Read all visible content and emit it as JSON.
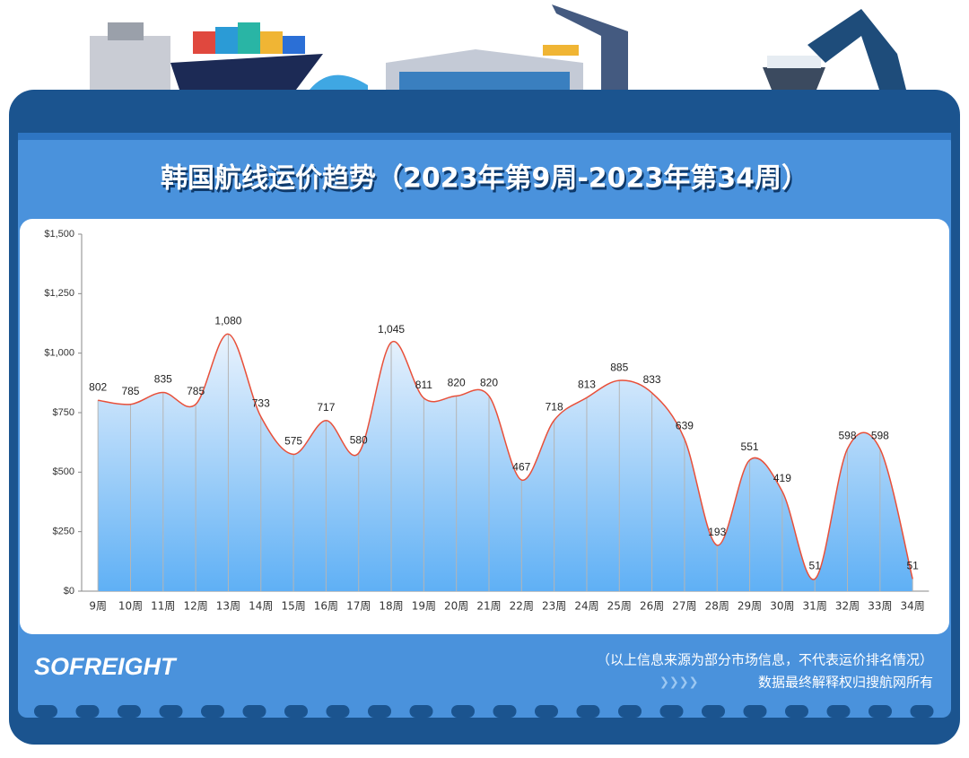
{
  "chart_data": {
    "type": "line",
    "title": "韩国航线运价趋势（2023年第9周-2023年第34周）",
    "categories": [
      "9周",
      "10周",
      "11周",
      "12周",
      "13周",
      "14周",
      "15周",
      "16周",
      "17周",
      "18周",
      "19周",
      "20周",
      "21周",
      "22周",
      "23周",
      "24周",
      "25周",
      "26周",
      "27周",
      "28周",
      "29周",
      "30周",
      "31周",
      "32周",
      "33周",
      "34周"
    ],
    "values": [
      802,
      785,
      835,
      785,
      1080,
      733,
      575,
      717,
      580,
      1045,
      811,
      820,
      820,
      467,
      718,
      813,
      885,
      833,
      639,
      193,
      551,
      419,
      51,
      598,
      598,
      51
    ],
    "value_labels": [
      "802",
      "785",
      "835",
      "785",
      "1,080",
      "733",
      "575",
      "717",
      "580",
      "1,045",
      "811",
      "820",
      "820",
      "467",
      "718",
      "813",
      "885",
      "833",
      "639",
      "193",
      "551",
      "419",
      "51",
      "598",
      "598",
      "51"
    ],
    "color": "#e8503a",
    "ylim": [
      0,
      1500
    ],
    "yticks": [
      {
        "value": 0,
        "label": "$0"
      },
      {
        "value": 250,
        "label": "$250"
      },
      {
        "value": 500,
        "label": "$500"
      },
      {
        "value": 750,
        "label": "$750"
      },
      {
        "value": 1000,
        "label": "$1,000"
      },
      {
        "value": 1250,
        "label": "$1,250"
      },
      {
        "value": 1500,
        "label": "$1,500"
      }
    ],
    "brand": "SOFREIGHT",
    "note": "（以上信息来源为部分市场信息，不代表运价排名情况）",
    "source": "数据最终解释权归搜航网所有"
  }
}
